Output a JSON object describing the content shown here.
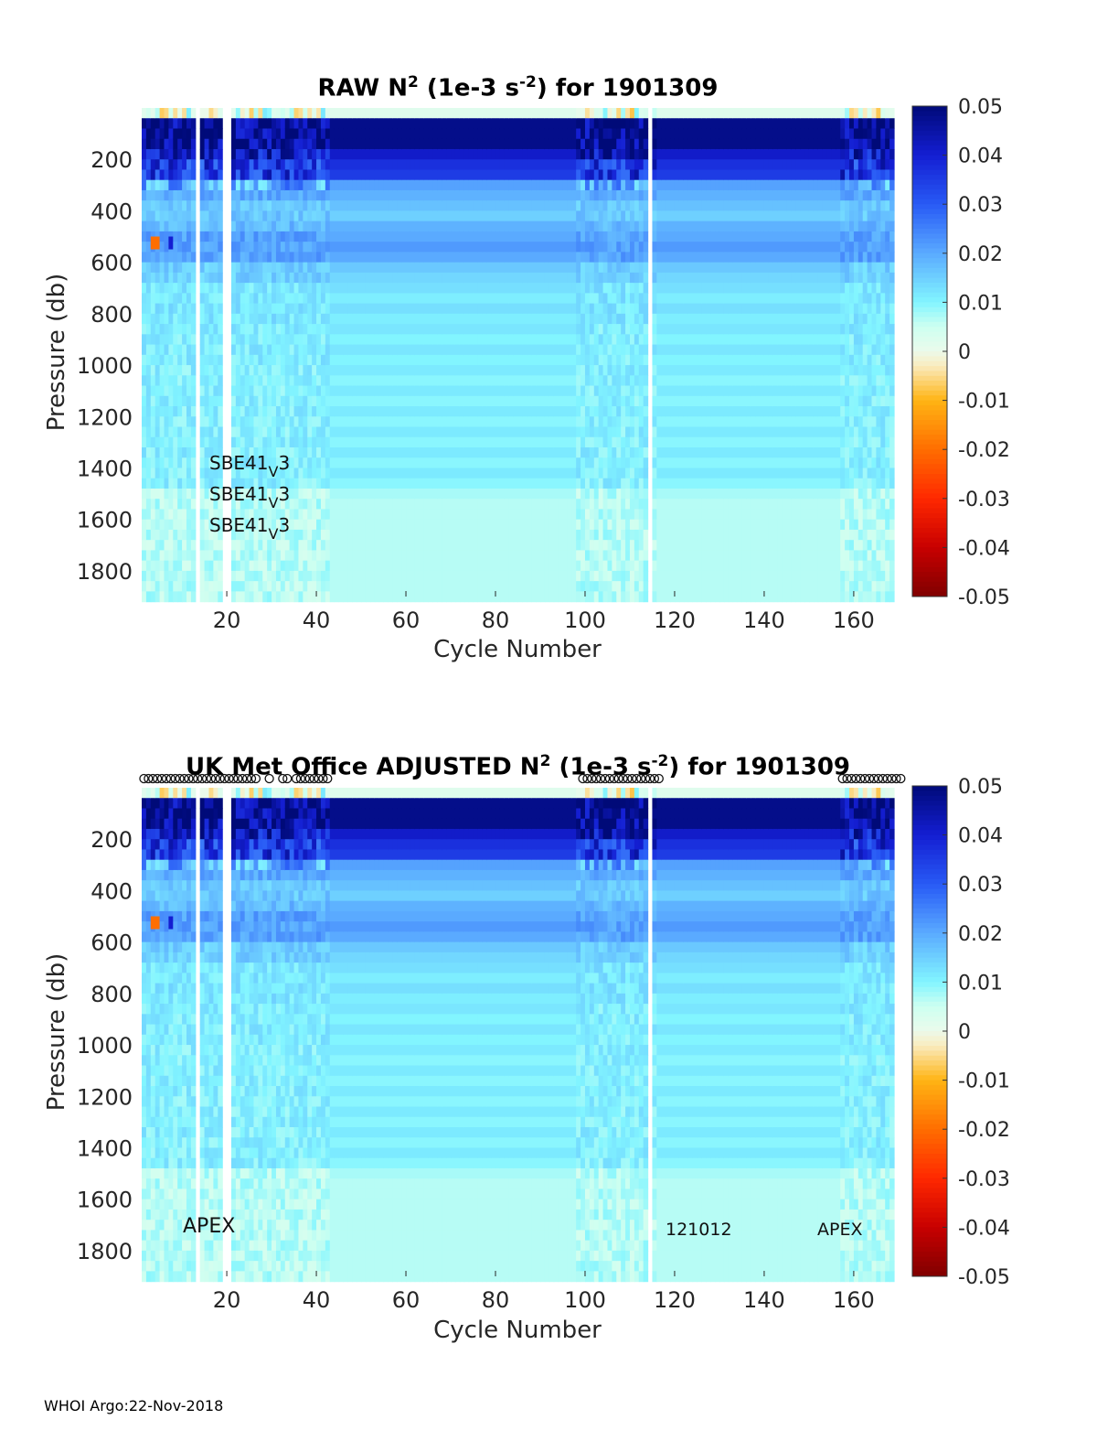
{
  "footer": "WHOI Argo:22-Nov-2018",
  "colorbar": {
    "ticks": [
      "0.05",
      "0.04",
      "0.03",
      "0.02",
      "0.01",
      "0",
      "-0.01",
      "-0.02",
      "-0.03",
      "-0.04",
      "-0.05"
    ],
    "range": [
      -0.05,
      0.05
    ]
  },
  "chart_data": [
    {
      "type": "heatmap",
      "title": {
        "prefix": "RAW N",
        "sup1": "2",
        "mid": " (1e-3 s",
        "sup2": "-2",
        "suffix": ") for 1901309"
      },
      "xlabel": "Cycle Number",
      "ylabel": "Pressure (db)",
      "xlim": [
        1,
        169
      ],
      "ylim": [
        1900,
        0
      ],
      "xticks": [
        "20",
        "40",
        "60",
        "80",
        "100",
        "120",
        "140",
        "160"
      ],
      "yticks": [
        "200",
        "400",
        "600",
        "800",
        "1000",
        "1200",
        "1400",
        "1600",
        "1800"
      ],
      "colorscale": "jet (-0.05 to 0.05)",
      "annotations": [
        {
          "text": "SBE41",
          "sub": "V",
          "after": "3"
        },
        {
          "text": "SBE41",
          "sub": "V",
          "after": "3"
        },
        {
          "text": "SBE41",
          "sub": "V",
          "after": "3"
        }
      ],
      "profile_summary": [
        {
          "pressure": 100,
          "value": 0.045
        },
        {
          "pressure": 250,
          "value": 0.04
        },
        {
          "pressure": 400,
          "value": 0.022
        },
        {
          "pressure": 550,
          "value": 0.02
        },
        {
          "pressure": 700,
          "value": 0.015
        },
        {
          "pressure": 900,
          "value": 0.012
        },
        {
          "pressure": 1200,
          "value": 0.01
        },
        {
          "pressure": 1600,
          "value": 0.006
        },
        {
          "pressure": 1800,
          "value": 0.005
        }
      ]
    },
    {
      "type": "heatmap",
      "title": {
        "prefix": "UK Met Office  ADJUSTED N",
        "sup1": "2",
        "mid": " (1e-3 s",
        "sup2": "-2",
        "suffix": ") for 1901309"
      },
      "xlabel": "Cycle Number",
      "ylabel": "Pressure (db)",
      "xlim": [
        1,
        169
      ],
      "ylim": [
        1900,
        0
      ],
      "xticks": [
        "20",
        "40",
        "60",
        "80",
        "100",
        "120",
        "140",
        "160"
      ],
      "yticks": [
        "200",
        "400",
        "600",
        "800",
        "1000",
        "1200",
        "1400",
        "1600",
        "1800"
      ],
      "colorscale": "jet (-0.05 to 0.05)",
      "annotations": [
        "APEX",
        "121012",
        "APEX"
      ],
      "profile_summary": [
        {
          "pressure": 100,
          "value": 0.045
        },
        {
          "pressure": 250,
          "value": 0.04
        },
        {
          "pressure": 400,
          "value": 0.022
        },
        {
          "pressure": 550,
          "value": 0.02
        },
        {
          "pressure": 700,
          "value": 0.015
        },
        {
          "pressure": 900,
          "value": 0.012
        },
        {
          "pressure": 1200,
          "value": 0.01
        },
        {
          "pressure": 1600,
          "value": 0.006
        },
        {
          "pressure": 1800,
          "value": 0.005
        }
      ]
    }
  ]
}
